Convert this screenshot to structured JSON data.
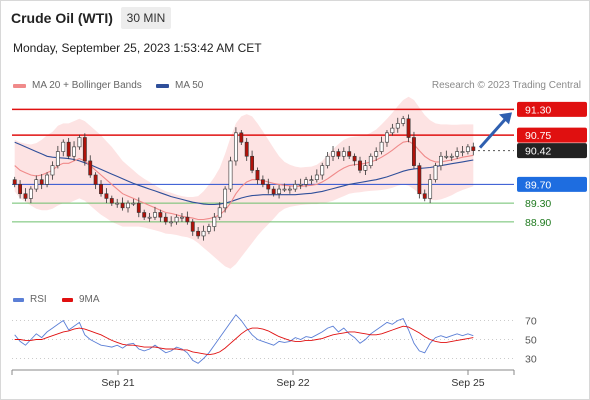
{
  "header": {
    "instrument": "Crude Oil (WTI)",
    "timeframe": "30 MIN",
    "datetime": "Monday, September 25, 2023 1:53:42 AM CET"
  },
  "legend": {
    "ma20_label": "MA 20 + Bollinger Bands",
    "ma50_label": "MA 50",
    "ma20_color": "#f08a8a",
    "ma50_color": "#2f4f9a",
    "research": "Research © 2023 Trading Central"
  },
  "rsi_legend": {
    "rsi_label": "RSI",
    "ma9_label": "9MA",
    "rsi_color": "#5b7fd6",
    "ma9_color": "#e01010"
  },
  "chart_data": [
    {
      "type": "candlestick",
      "x_labels": [
        "Sep 21",
        "Sep 22",
        "Sep 25"
      ],
      "ylim": [
        88.3,
        91.5
      ],
      "current_price": "90.42",
      "levels": [
        {
          "value": 91.3,
          "label": "91.30",
          "kind": "resistance"
        },
        {
          "value": 90.75,
          "label": "90.75",
          "kind": "resistance"
        },
        {
          "value": 90.42,
          "label": "90.42",
          "kind": "current"
        },
        {
          "value": 89.7,
          "label": "89.70",
          "kind": "pivot"
        },
        {
          "value": 89.3,
          "label": "89.30",
          "kind": "support"
        },
        {
          "value": 88.9,
          "label": "88.90",
          "kind": "support"
        }
      ],
      "closes": [
        89.7,
        89.5,
        89.4,
        89.6,
        89.8,
        89.7,
        89.9,
        90.1,
        90.4,
        90.6,
        90.3,
        90.5,
        90.7,
        90.2,
        89.9,
        89.7,
        89.5,
        89.4,
        89.3,
        89.3,
        89.2,
        89.3,
        89.3,
        89.1,
        89.0,
        89.0,
        89.1,
        89.0,
        88.9,
        88.9,
        89.0,
        89.0,
        88.9,
        88.7,
        88.6,
        88.7,
        88.8,
        89.0,
        89.2,
        89.6,
        90.2,
        90.8,
        90.6,
        90.3,
        90.0,
        89.8,
        89.7,
        89.6,
        89.5,
        89.6,
        89.6,
        89.6,
        89.7,
        89.7,
        89.8,
        89.8,
        89.9,
        90.1,
        90.3,
        90.4,
        90.3,
        90.4,
        90.3,
        90.2,
        90.0,
        90.1,
        90.3,
        90.4,
        90.6,
        90.8,
        90.9,
        91.0,
        91.1,
        90.7,
        90.1,
        89.5,
        89.4,
        89.8,
        90.1,
        90.3,
        90.3,
        90.3,
        90.4,
        90.4,
        90.5,
        90.42
      ],
      "ma20": [
        90.1,
        90.0,
        89.95,
        89.9,
        89.88,
        89.9,
        89.95,
        90.0,
        90.1,
        90.15,
        90.15,
        90.2,
        90.25,
        90.2,
        90.1,
        90.0,
        89.9,
        89.8,
        89.7,
        89.6,
        89.5,
        89.45,
        89.4,
        89.35,
        89.3,
        89.25,
        89.2,
        89.15,
        89.1,
        89.08,
        89.05,
        89.02,
        89.0,
        88.98,
        88.95,
        88.95,
        88.97,
        89.0,
        89.05,
        89.15,
        89.3,
        89.5,
        89.65,
        89.75,
        89.8,
        89.8,
        89.78,
        89.75,
        89.72,
        89.7,
        89.68,
        89.67,
        89.66,
        89.66,
        89.67,
        89.68,
        89.7,
        89.75,
        89.82,
        89.9,
        89.98,
        90.05,
        90.1,
        90.12,
        90.13,
        90.15,
        90.18,
        90.22,
        90.28,
        90.35,
        90.43,
        90.52,
        90.6,
        90.62,
        90.55,
        90.42,
        90.3,
        90.22,
        90.18,
        90.18,
        90.2,
        90.22,
        90.25,
        90.28,
        90.3,
        90.32
      ],
      "ma50": [
        90.6,
        90.55,
        90.5,
        90.45,
        90.4,
        90.35,
        90.3,
        90.28,
        90.27,
        90.26,
        90.25,
        90.23,
        90.2,
        90.16,
        90.12,
        90.07,
        90.02,
        89.97,
        89.92,
        89.87,
        89.82,
        89.77,
        89.72,
        89.68,
        89.64,
        89.6,
        89.56,
        89.52,
        89.48,
        89.44,
        89.41,
        89.38,
        89.35,
        89.32,
        89.3,
        89.28,
        89.27,
        89.27,
        89.28,
        89.3,
        89.33,
        89.37,
        89.41,
        89.44,
        89.46,
        89.47,
        89.48,
        89.48,
        89.48,
        89.48,
        89.48,
        89.48,
        89.48,
        89.49,
        89.5,
        89.51,
        89.53,
        89.55,
        89.58,
        89.61,
        89.64,
        89.67,
        89.7,
        89.72,
        89.74,
        89.76,
        89.78,
        89.8,
        89.83,
        89.86,
        89.9,
        89.94,
        89.98,
        90.01,
        90.03,
        90.04,
        90.05,
        90.06,
        90.08,
        90.1,
        90.12,
        90.14,
        90.16,
        90.18,
        90.2,
        90.22
      ],
      "bb_width": [
        0.55,
        0.6,
        0.62,
        0.65,
        0.7,
        0.75,
        0.8,
        0.82,
        0.85,
        0.85,
        0.85,
        0.85,
        0.85,
        0.85,
        0.85,
        0.85,
        0.85,
        0.82,
        0.8,
        0.75,
        0.7,
        0.65,
        0.6,
        0.55,
        0.52,
        0.5,
        0.48,
        0.46,
        0.45,
        0.44,
        0.43,
        0.43,
        0.43,
        0.45,
        0.5,
        0.6,
        0.72,
        0.85,
        1.0,
        1.2,
        1.4,
        1.5,
        1.5,
        1.45,
        1.35,
        1.2,
        1.05,
        0.9,
        0.75,
        0.6,
        0.5,
        0.45,
        0.42,
        0.4,
        0.4,
        0.4,
        0.42,
        0.45,
        0.5,
        0.55,
        0.58,
        0.6,
        0.6,
        0.6,
        0.6,
        0.6,
        0.62,
        0.65,
        0.7,
        0.75,
        0.8,
        0.85,
        0.9,
        0.95,
        0.95,
        0.92,
        0.88,
        0.85,
        0.82,
        0.8,
        0.78,
        0.75,
        0.72,
        0.7,
        0.68,
        0.66
      ]
    },
    {
      "type": "line",
      "name": "RSI",
      "ylim": [
        20,
        80
      ],
      "y_ticks": [
        "70",
        "50",
        "30"
      ],
      "rsi": [
        55,
        48,
        44,
        50,
        56,
        52,
        58,
        62,
        66,
        70,
        60,
        64,
        68,
        55,
        50,
        47,
        44,
        43,
        42,
        44,
        41,
        45,
        46,
        40,
        38,
        40,
        44,
        40,
        36,
        38,
        42,
        40,
        36,
        28,
        25,
        30,
        36,
        44,
        52,
        60,
        68,
        76,
        70,
        62,
        55,
        50,
        48,
        46,
        44,
        48,
        47,
        48,
        52,
        50,
        53,
        52,
        55,
        58,
        62,
        64,
        58,
        62,
        56,
        52,
        46,
        50,
        56,
        60,
        64,
        68,
        66,
        70,
        72,
        60,
        46,
        38,
        36,
        46,
        52,
        54,
        52,
        54,
        56,
        54,
        56,
        54
      ],
      "ma9": [
        50,
        50,
        49,
        49,
        50,
        50,
        52,
        54,
        56,
        58,
        59,
        61,
        62,
        61,
        59,
        57,
        55,
        52,
        49,
        47,
        45,
        44,
        44,
        43,
        42,
        42,
        42,
        41,
        40,
        40,
        40,
        39,
        39,
        37,
        36,
        35,
        34,
        35,
        37,
        41,
        46,
        51,
        56,
        60,
        62,
        62,
        61,
        59,
        56,
        53,
        51,
        49,
        48,
        48,
        49,
        49,
        50,
        51,
        53,
        55,
        56,
        57,
        58,
        58,
        57,
        56,
        55,
        55,
        56,
        58,
        60,
        62,
        64,
        63,
        60,
        57,
        53,
        50,
        48,
        47,
        47,
        48,
        49,
        50,
        51,
        52
      ]
    }
  ]
}
